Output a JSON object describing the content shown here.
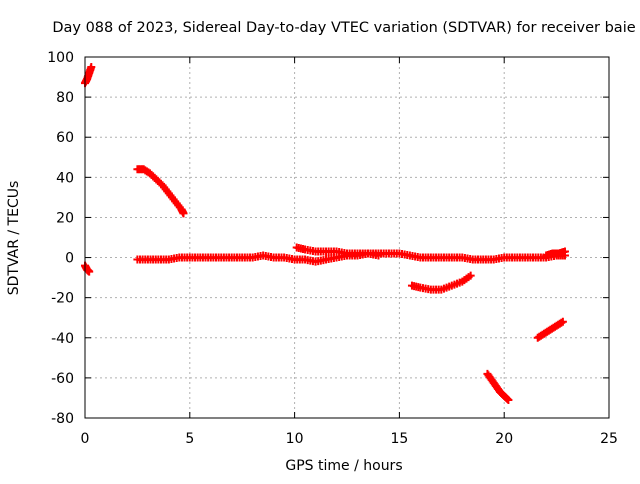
{
  "chart_data": {
    "type": "scatter",
    "title": "Day 088 of 2023, Sidereal Day-to-day VTEC variation (SDTVAR) for receiver baie",
    "xlabel": "GPS time / hours",
    "ylabel": "SDTVAR / TECUs",
    "xlim": [
      0,
      25
    ],
    "ylim": [
      -80,
      100
    ],
    "xticks": [
      0,
      5,
      10,
      15,
      20,
      25
    ],
    "yticks": [
      -80,
      -60,
      -40,
      -20,
      0,
      20,
      40,
      60,
      80,
      100
    ],
    "grid": true,
    "marker": "plus",
    "color": "#ff0000",
    "segments": [
      {
        "x": [
          0.0,
          0.1,
          0.2,
          0.3
        ],
        "y": [
          87,
          89,
          92,
          95
        ]
      },
      {
        "x": [
          0.0,
          0.1,
          0.2
        ],
        "y": [
          -4,
          -6,
          -7
        ]
      },
      {
        "x": [
          2.5,
          2.8,
          3.1,
          3.4,
          3.7,
          4.0,
          4.3,
          4.6,
          4.7
        ],
        "y": [
          44,
          44,
          42,
          39,
          36,
          32,
          28,
          24,
          22
        ]
      },
      {
        "x": [
          2.5,
          3.0,
          3.5,
          4.0,
          4.5,
          5.0,
          5.5,
          6.0,
          6.5,
          7.0,
          7.5,
          8.0,
          8.5,
          9.0,
          9.5,
          10.0,
          10.5,
          11.0,
          11.5,
          12.0,
          12.5,
          13.0,
          13.5,
          14.0,
          14.5,
          15.0,
          15.5,
          16.0,
          16.5,
          17.0,
          17.5,
          18.0,
          18.5,
          19.0,
          19.5,
          20.0,
          20.5,
          21.0,
          21.5,
          22.0,
          22.5,
          22.9
        ],
        "y": [
          -1,
          -1,
          -1,
          -1,
          0,
          0,
          0,
          0,
          0,
          0,
          0,
          0,
          1,
          0,
          0,
          -1,
          -1,
          -2,
          -1,
          0,
          1,
          1,
          2,
          2,
          2,
          2,
          1,
          0,
          0,
          0,
          0,
          0,
          -1,
          -1,
          -1,
          0,
          0,
          0,
          0,
          0,
          1,
          1
        ]
      },
      {
        "x": [
          10.1,
          10.5,
          11.0,
          11.5,
          12.0,
          12.5,
          13.0,
          13.5,
          14.0
        ],
        "y": [
          5,
          4,
          3,
          3,
          3,
          2,
          2,
          2,
          1
        ]
      },
      {
        "x": [
          22.0,
          22.3,
          22.6,
          22.9
        ],
        "y": [
          1,
          2,
          2,
          3
        ]
      },
      {
        "x": [
          15.6,
          16.0,
          16.5,
          17.0,
          17.5,
          18.0,
          18.4
        ],
        "y": [
          -14,
          -15,
          -16,
          -16,
          -14,
          -12,
          -9
        ]
      },
      {
        "x": [
          19.2,
          19.4,
          19.6,
          19.8,
          20.0,
          20.2
        ],
        "y": [
          -58,
          -61,
          -64,
          -67,
          -69,
          -71
        ]
      },
      {
        "x": [
          21.6,
          21.9,
          22.2,
          22.5,
          22.8
        ],
        "y": [
          -40,
          -38,
          -36,
          -34,
          -32
        ]
      }
    ]
  }
}
